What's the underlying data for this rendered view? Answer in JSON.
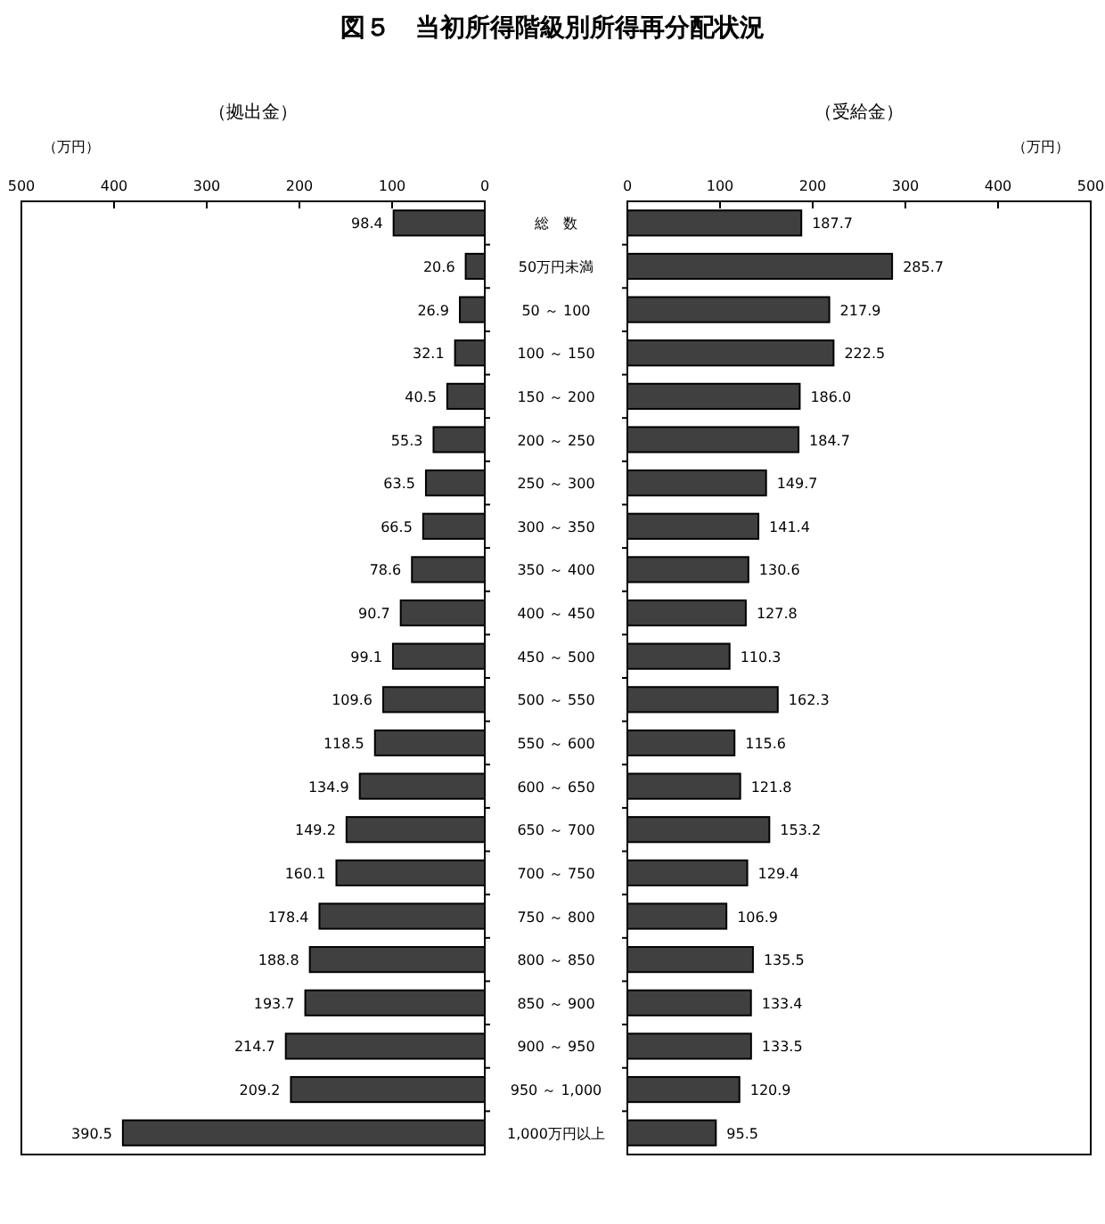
{
  "chart_data": [
    {
      "type": "bar",
      "orientation": "horizontal",
      "title": "図５　当初所得階級別所得再分配状況",
      "subtitle": "（拠出金）",
      "xlabel": "（万円）",
      "categories": [
        "総　数",
        "50万円未満",
        "50 ～ 100",
        "100 ～ 150",
        "150 ～ 200",
        "200 ～ 250",
        "250 ～ 300",
        "300 ～ 350",
        "350 ～ 400",
        "400 ～ 450",
        "450 ～ 500",
        "500 ～ 550",
        "550 ～ 600",
        "600 ～ 650",
        "650 ～ 700",
        "700 ～ 750",
        "750 ～ 800",
        "800 ～ 850",
        "850 ～ 900",
        "900 ～ 950",
        "950 ～ 1,000",
        "1,000万円以上"
      ],
      "values": [
        98.4,
        20.6,
        26.9,
        32.1,
        40.5,
        55.3,
        63.5,
        66.5,
        78.6,
        90.7,
        99.1,
        109.6,
        118.5,
        134.9,
        149.2,
        160.1,
        178.4,
        188.8,
        193.7,
        214.7,
        209.2,
        390.5
      ],
      "value_labels": [
        "98.4",
        "20.6",
        "26.9",
        "32.1",
        "40.5",
        "55.3",
        "63.5",
        "66.5",
        "78.6",
        "90.7",
        "99.1",
        "109.6",
        "118.5",
        "134.9",
        "149.2",
        "160.1",
        "178.4",
        "188.8",
        "193.7",
        "214.7",
        "209.2",
        "390.5"
      ],
      "color": "#404040",
      "xlim": [
        500,
        0
      ],
      "xticks": [
        500,
        400,
        300,
        200,
        100,
        0
      ]
    },
    {
      "type": "bar",
      "orientation": "horizontal",
      "subtitle": "（受給金）",
      "xlabel": "（万円）",
      "categories": [
        null,
        null,
        null,
        null,
        null,
        null,
        null,
        null,
        null,
        null,
        null,
        null,
        null,
        null,
        null,
        null,
        null,
        null,
        null,
        null,
        null,
        null
      ],
      "values": [
        187.7,
        285.7,
        217.9,
        222.5,
        186.0,
        184.7,
        149.7,
        141.4,
        130.6,
        127.8,
        110.3,
        162.3,
        115.6,
        121.8,
        153.2,
        129.4,
        106.9,
        135.5,
        133.4,
        133.5,
        120.9,
        95.5
      ],
      "value_labels": [
        "187.7",
        "285.7",
        "217.9",
        "222.5",
        "186.0",
        "184.7",
        "149.7",
        "141.4",
        "130.6",
        "127.8",
        "110.3",
        "162.3",
        "115.6",
        "121.8",
        "153.2",
        "129.4",
        "106.9",
        "135.5",
        "133.4",
        "133.5",
        "120.9",
        "95.5"
      ],
      "color": "#404040",
      "xlim": [
        0,
        500
      ],
      "xticks": [
        0,
        100,
        200,
        300,
        400,
        500
      ]
    }
  ]
}
